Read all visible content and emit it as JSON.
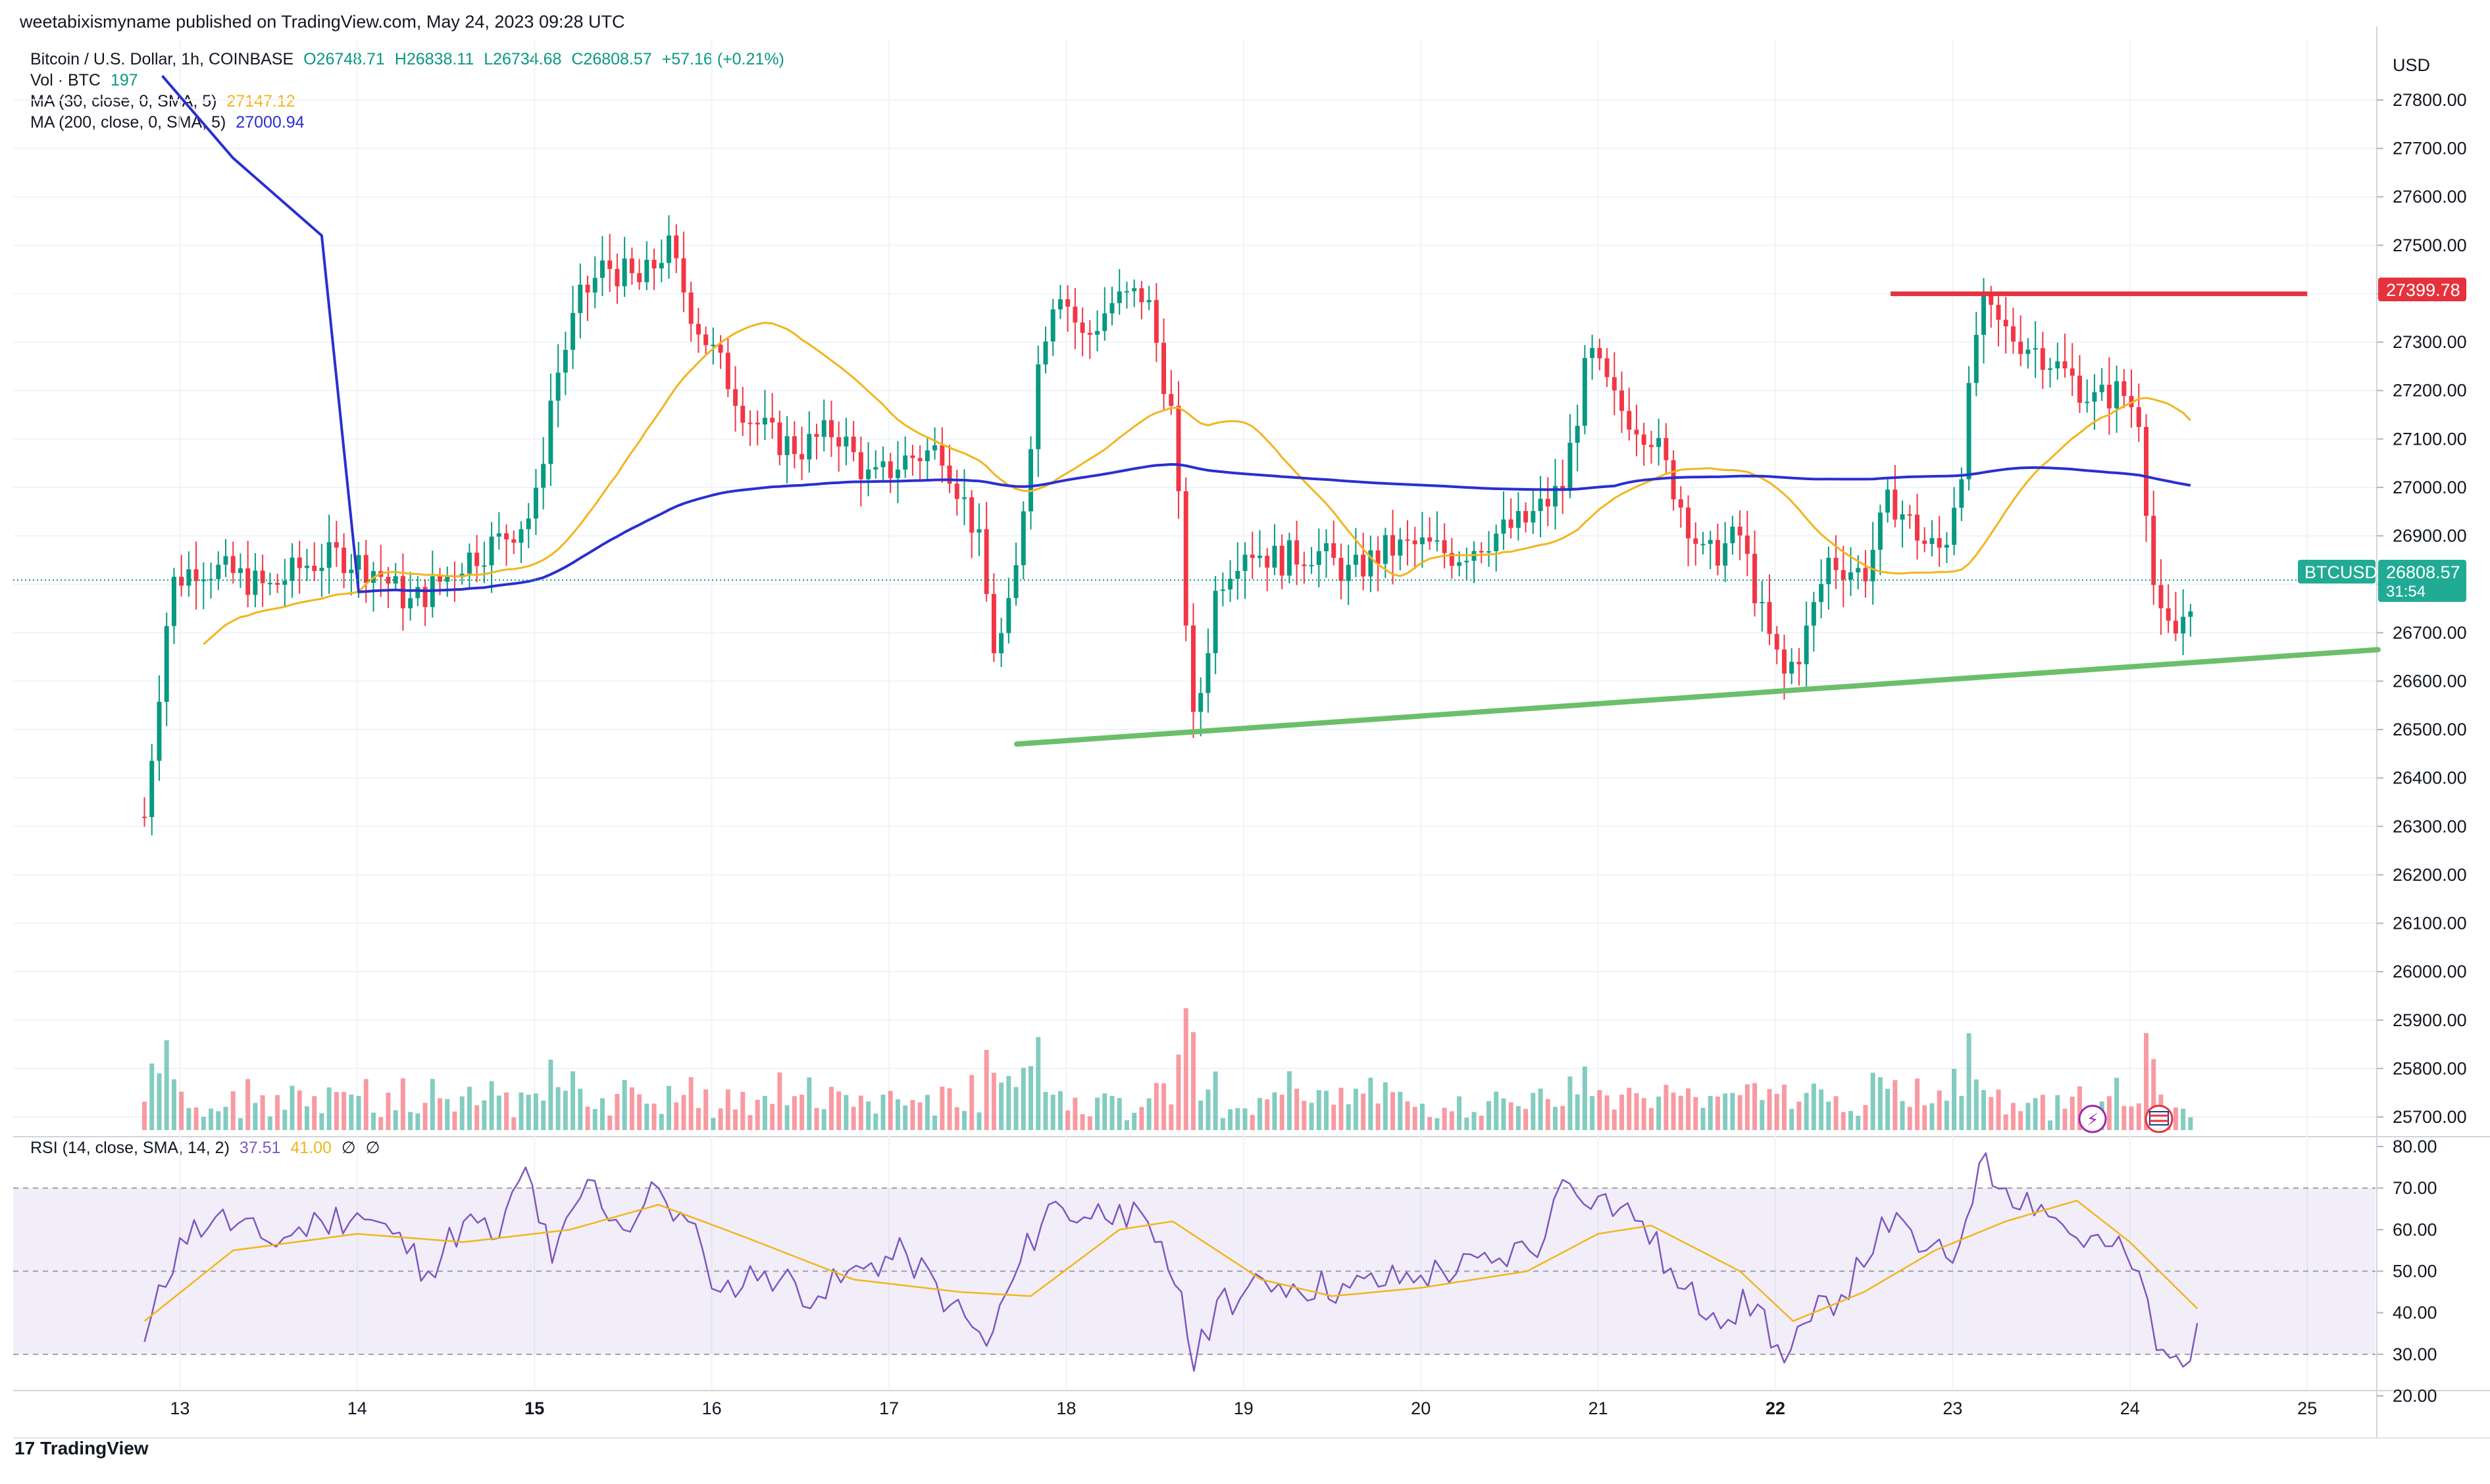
{
  "header": {
    "published": "weetabixismyname published on TradingView.com, May 24, 2023 09:28 UTC"
  },
  "legend": {
    "symbol": "Bitcoin / U.S. Dollar, 1h, COINBASE",
    "o": "O26748.71",
    "h": "H26838.11",
    "l": "L26734.68",
    "c": "C26808.57",
    "change": "+57.16 (+0.21%)",
    "vol_label": "Vol · BTC",
    "vol_value": "197",
    "ma30_label": "MA (30, close, 0, SMA, 5)",
    "ma30_value": "27147.12",
    "ma200_label": "MA (200, close, 0, SMA, 5)",
    "ma200_value": "27000.94",
    "rsi_label": "RSI (14, close, SMA, 14, 2)",
    "rsi_value": "37.51",
    "rsi_ma_value": "41.00",
    "rsi_extra1": "∅",
    "rsi_extra2": "∅"
  },
  "axis": {
    "currency": "USD",
    "symbol_tag": "BTCUSD",
    "price_tag": "26808.57",
    "countdown": "31:54",
    "resistance_tag": "27399.78"
  },
  "footer": {
    "logo_text": "TradingView",
    "logo_mark": "17"
  },
  "colors": {
    "up": "#089981",
    "down": "#f23645",
    "ma30": "#f2b51c",
    "ma200": "#2a2fd0",
    "rsi": "#7e57c2",
    "resistance": "#e5323c",
    "support": "#6cbf6a"
  },
  "chart_data": [
    {
      "type": "candlestick",
      "title": "Bitcoin / U.S. Dollar, 1h, COINBASE",
      "ylabel": "USD",
      "ylim": [
        25620,
        27860
      ],
      "y_ticks": [
        "25700.00",
        "25800.00",
        "25900.00",
        "26000.00",
        "26100.00",
        "26200.00",
        "26300.00",
        "26400.00",
        "26500.00",
        "26600.00",
        "26700.00",
        "26800.00",
        "26900.00",
        "27000.00",
        "27100.00",
        "27200.00",
        "27300.00",
        "27400.00",
        "27500.00",
        "27600.00",
        "27700.00",
        "27800.00"
      ],
      "x_ticks": [
        "13",
        "14",
        "15",
        "16",
        "17",
        "18",
        "19",
        "20",
        "21",
        "22",
        "23",
        "24",
        "25"
      ],
      "price_path_close": [
        [
          12.8,
          26320
        ],
        [
          12.95,
          26800
        ],
        [
          13.1,
          26840
        ],
        [
          13.3,
          26820
        ],
        [
          13.5,
          26790
        ],
        [
          13.7,
          26840
        ],
        [
          13.9,
          26860
        ],
        [
          14.1,
          26830
        ],
        [
          14.3,
          26760
        ],
        [
          14.45,
          26800
        ],
        [
          14.6,
          26850
        ],
        [
          14.8,
          26890
        ],
        [
          15.0,
          26950
        ],
        [
          15.1,
          27200
        ],
        [
          15.25,
          27380
        ],
        [
          15.4,
          27460
        ],
        [
          15.6,
          27420
        ],
        [
          15.75,
          27500
        ],
        [
          15.9,
          27350
        ],
        [
          16.05,
          27250
        ],
        [
          16.2,
          27150
        ],
        [
          16.35,
          27100
        ],
        [
          16.5,
          27080
        ],
        [
          16.7,
          27120
        ],
        [
          16.9,
          27010
        ],
        [
          17.1,
          27060
        ],
        [
          17.3,
          27080
        ],
        [
          17.5,
          26900
        ],
        [
          17.6,
          26650
        ],
        [
          17.7,
          26770
        ],
        [
          17.85,
          27280
        ],
        [
          17.95,
          27430
        ],
        [
          18.1,
          27300
        ],
        [
          18.25,
          27380
        ],
        [
          18.45,
          27400
        ],
        [
          18.6,
          27140
        ],
        [
          18.72,
          26490
        ],
        [
          18.85,
          26800
        ],
        [
          19.0,
          26880
        ],
        [
          19.2,
          26850
        ],
        [
          19.4,
          26870
        ],
        [
          19.6,
          26820
        ],
        [
          19.8,
          26870
        ],
        [
          20.0,
          26880
        ],
        [
          20.2,
          26860
        ],
        [
          20.4,
          26900
        ],
        [
          20.6,
          26930
        ],
        [
          20.8,
          27000
        ],
        [
          20.95,
          27280
        ],
        [
          21.1,
          27170
        ],
        [
          21.3,
          27110
        ],
        [
          21.45,
          26980
        ],
        [
          21.6,
          26850
        ],
        [
          21.8,
          26900
        ],
        [
          21.95,
          26700
        ],
        [
          22.05,
          26610
        ],
        [
          22.15,
          26670
        ],
        [
          22.3,
          26850
        ],
        [
          22.5,
          26820
        ],
        [
          22.65,
          26980
        ],
        [
          22.85,
          26880
        ],
        [
          22.95,
          26870
        ],
        [
          23.05,
          27050
        ],
        [
          23.15,
          27370
        ],
        [
          23.3,
          27320
        ],
        [
          23.5,
          27280
        ],
        [
          23.65,
          27230
        ],
        [
          23.8,
          27180
        ],
        [
          23.95,
          27200
        ],
        [
          24.05,
          27150
        ],
        [
          24.15,
          26730
        ],
        [
          24.25,
          26690
        ],
        [
          24.38,
          26808.57
        ]
      ],
      "series": [
        {
          "name": "MA (30, close, 0, SMA, 5)",
          "value": 27147.12
        },
        {
          "name": "MA (200, close, 0, SMA, 5)",
          "value": 27000.94
        },
        {
          "name": "Vol · BTC",
          "value": 197
        }
      ],
      "annotations": [
        {
          "type": "horizontal-resistance",
          "value": 27399.78,
          "from_x": 22.65,
          "to_x": 25.0
        },
        {
          "type": "support-trendline",
          "from": [
            17.72,
            26470
          ],
          "to": [
            25.4,
            26665
          ]
        }
      ]
    },
    {
      "type": "line",
      "title": "RSI (14, close, SMA, 14, 2)",
      "ylim": [
        18,
        82
      ],
      "y_ticks": [
        "20.00",
        "30.00",
        "40.00",
        "50.00",
        "60.00",
        "70.00",
        "80.00"
      ],
      "bands": [
        30,
        50,
        70
      ],
      "values": [
        [
          12.8,
          33
        ],
        [
          13.0,
          58
        ],
        [
          13.2,
          63
        ],
        [
          13.5,
          57
        ],
        [
          13.8,
          62
        ],
        [
          14.0,
          64
        ],
        [
          14.2,
          59
        ],
        [
          14.4,
          50
        ],
        [
          14.6,
          62
        ],
        [
          14.8,
          58
        ],
        [
          14.95,
          75
        ],
        [
          15.1,
          52
        ],
        [
          15.3,
          72
        ],
        [
          15.5,
          60
        ],
        [
          15.7,
          70
        ],
        [
          15.95,
          55
        ],
        [
          16.05,
          45
        ],
        [
          16.3,
          50
        ],
        [
          16.6,
          44
        ],
        [
          16.9,
          52
        ],
        [
          17.1,
          54
        ],
        [
          17.35,
          42
        ],
        [
          17.55,
          32
        ],
        [
          17.7,
          48
        ],
        [
          17.9,
          66
        ],
        [
          18.1,
          63
        ],
        [
          18.3,
          66
        ],
        [
          18.5,
          57
        ],
        [
          18.65,
          45
        ],
        [
          18.72,
          26
        ],
        [
          18.85,
          43
        ],
        [
          19.2,
          47
        ],
        [
          19.6,
          46
        ],
        [
          20.0,
          49
        ],
        [
          20.4,
          52
        ],
        [
          20.7,
          58
        ],
        [
          20.8,
          72
        ],
        [
          21.0,
          68
        ],
        [
          21.25,
          62
        ],
        [
          21.45,
          46
        ],
        [
          21.65,
          40
        ],
        [
          21.9,
          42
        ],
        [
          22.05,
          28
        ],
        [
          22.2,
          38
        ],
        [
          22.5,
          51
        ],
        [
          22.6,
          63
        ],
        [
          22.85,
          55
        ],
        [
          23.0,
          52
        ],
        [
          23.15,
          76
        ],
        [
          23.3,
          70
        ],
        [
          23.5,
          66
        ],
        [
          23.7,
          58
        ],
        [
          23.9,
          56
        ],
        [
          24.05,
          50
        ],
        [
          24.15,
          31
        ],
        [
          24.3,
          27
        ],
        [
          24.38,
          37.51
        ]
      ],
      "ma_values": [
        [
          12.8,
          38
        ],
        [
          13.3,
          55
        ],
        [
          14.0,
          59
        ],
        [
          14.6,
          57
        ],
        [
          15.2,
          60
        ],
        [
          15.7,
          66
        ],
        [
          16.2,
          58
        ],
        [
          16.8,
          48
        ],
        [
          17.4,
          45
        ],
        [
          17.8,
          44
        ],
        [
          18.3,
          60
        ],
        [
          18.6,
          62
        ],
        [
          19.1,
          48
        ],
        [
          19.5,
          44
        ],
        [
          20.0,
          46
        ],
        [
          20.6,
          50
        ],
        [
          21.0,
          59
        ],
        [
          21.3,
          61
        ],
        [
          21.8,
          50
        ],
        [
          22.1,
          38
        ],
        [
          22.5,
          45
        ],
        [
          22.9,
          55
        ],
        [
          23.3,
          62
        ],
        [
          23.7,
          67
        ],
        [
          24.0,
          57
        ],
        [
          24.38,
          41
        ]
      ]
    }
  ]
}
